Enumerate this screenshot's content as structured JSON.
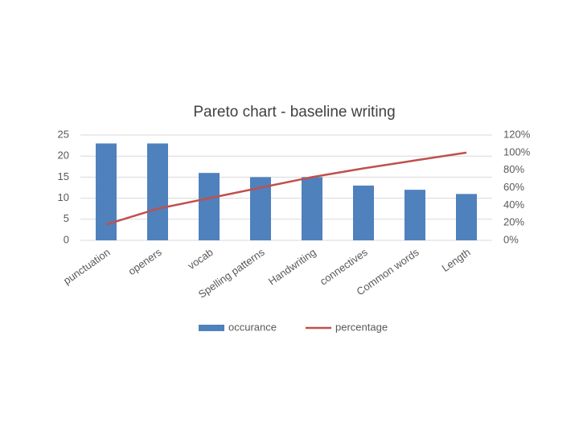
{
  "chart_data": {
    "type": "bar",
    "title": "Pareto chart - baseline writing",
    "categories": [
      "punctuation",
      "openers",
      "vocab",
      "Spelling patterns",
      "Handwriting",
      "connectives",
      "Common words",
      "Length"
    ],
    "series": [
      {
        "name": "occurance",
        "type": "bar",
        "color": "#4f81bd",
        "values": [
          23,
          23,
          16,
          15,
          15,
          13,
          12,
          11
        ]
      },
      {
        "name": "percentage",
        "type": "line",
        "axis": "y2",
        "color": "#c0504d",
        "values": [
          18,
          36,
          48,
          60,
          72,
          82,
          91,
          100
        ]
      }
    ],
    "ylim": [
      0,
      25
    ],
    "yticks": [
      0,
      5,
      10,
      15,
      20,
      25
    ],
    "y2lim": [
      0,
      120
    ],
    "y2ticks": [
      {
        "value": 0,
        "label": "0%"
      },
      {
        "value": 20,
        "label": "20%"
      },
      {
        "value": 40,
        "label": "40%"
      },
      {
        "value": 60,
        "label": "60%"
      },
      {
        "value": 80,
        "label": "80%"
      },
      {
        "value": 100,
        "label": "100%"
      },
      {
        "value": 120,
        "label": "120%"
      }
    ],
    "grid": true,
    "legend": "bottom"
  }
}
